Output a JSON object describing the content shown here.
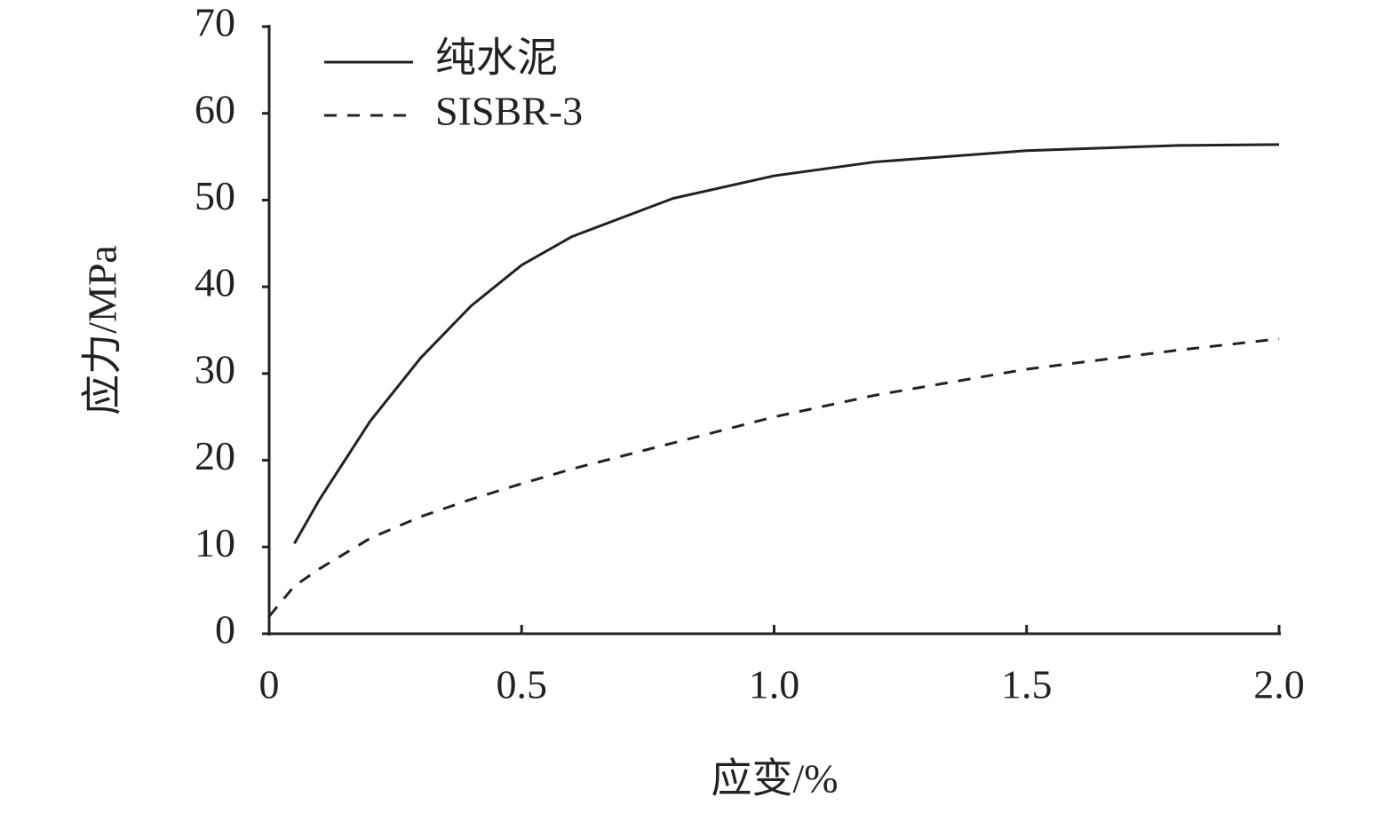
{
  "chart_data": {
    "type": "line",
    "xlabel": "应变/%",
    "ylabel": "应力/MPa",
    "x": [
      0,
      0.05,
      0.1,
      0.2,
      0.3,
      0.4,
      0.5,
      0.6,
      0.8,
      1.0,
      1.2,
      1.5,
      1.8,
      2.0
    ],
    "series": [
      {
        "name": "纯水泥",
        "color": "#222222",
        "dash": "solid",
        "values": [
          null,
          10.4,
          15.5,
          24.5,
          31.8,
          37.8,
          42.5,
          45.8,
          50.2,
          52.8,
          54.4,
          55.7,
          56.3,
          56.4
        ]
      },
      {
        "name": "SISBR-3",
        "color": "#222222",
        "dash": "dashed",
        "values": [
          2,
          5.5,
          7.5,
          11,
          13.5,
          15.5,
          17.3,
          19,
          22,
          25,
          27.5,
          30.5,
          32.7,
          34
        ]
      }
    ],
    "xlim": [
      0,
      2
    ],
    "ylim": [
      0,
      70
    ],
    "xticks": [
      0,
      0.5,
      {
        "value": 1,
        "label": "1.0"
      },
      1.5,
      {
        "value": 2,
        "label": "2.0"
      }
    ],
    "yticks": [
      0,
      10,
      20,
      30,
      40,
      50,
      60,
      70
    ],
    "legend": "upper-left"
  }
}
